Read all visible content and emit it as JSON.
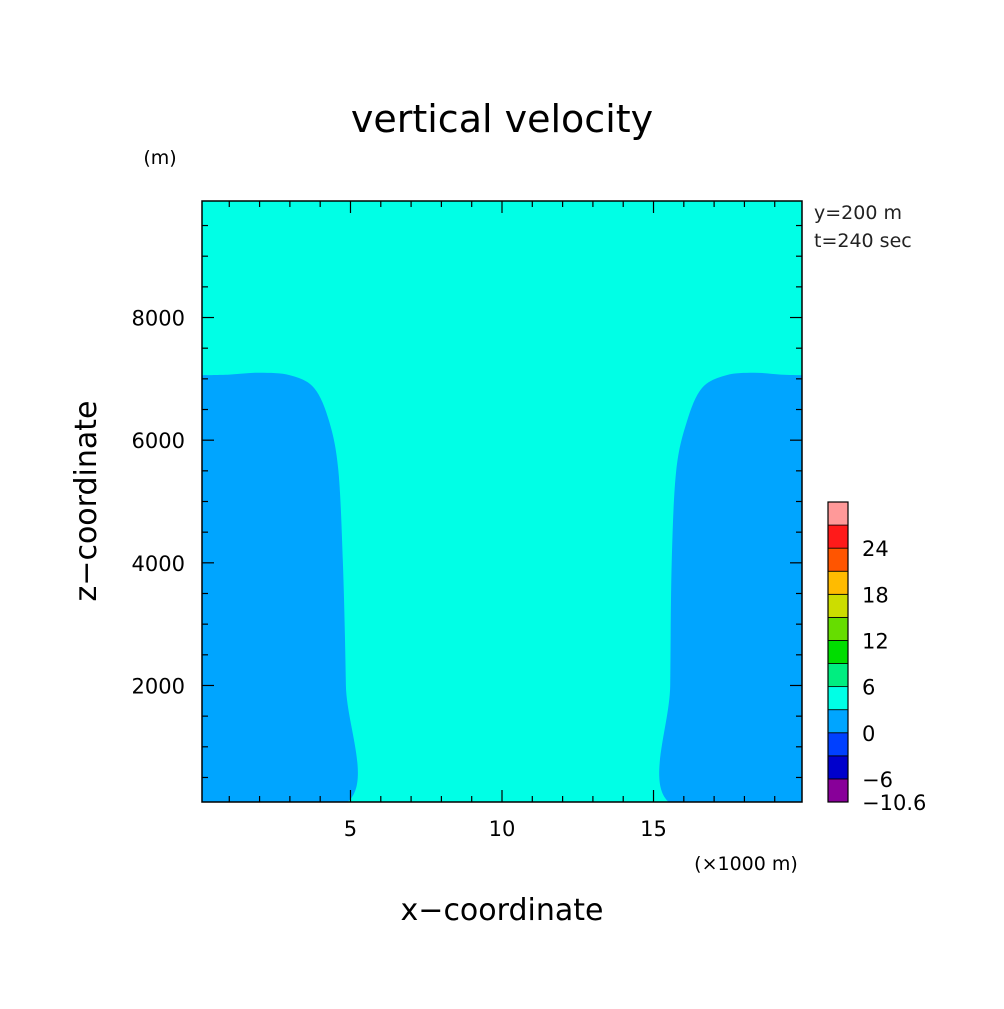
{
  "chart_data": {
    "type": "heatmap",
    "title": "vertical velocity",
    "xlabel": "x−coordinate",
    "ylabel": "z−coordinate",
    "x_unit": "(×1000 m)",
    "y_unit": "(m)",
    "annotations": [
      "y=200 m",
      "t=240 sec"
    ],
    "xlim": [
      0.1,
      19.9
    ],
    "ylim": [
      100,
      9900
    ],
    "x_ticks": [
      5,
      10,
      15
    ],
    "y_ticks": [
      2000,
      4000,
      6000,
      8000
    ],
    "x_tick_labels": [
      "5",
      "10",
      "15"
    ],
    "y_tick_labels": [
      "2000",
      "4000",
      "6000",
      "8000"
    ],
    "background_level": "0 to 3",
    "regions": [
      {
        "name": "left-downdraft",
        "level": "-3 to 0",
        "color": "#00a5ff",
        "boundary": [
          [
            0.1,
            100
          ],
          [
            4.9,
            100
          ],
          [
            4.85,
            2000
          ],
          [
            4.75,
            4000
          ],
          [
            4.6,
            5500
          ],
          [
            4.3,
            6300
          ],
          [
            3.8,
            6850
          ],
          [
            3.0,
            7060
          ],
          [
            2.0,
            7100
          ],
          [
            1.0,
            7070
          ],
          [
            0.1,
            7060
          ]
        ]
      },
      {
        "name": "right-downdraft",
        "level": "-3 to 0",
        "color": "#00a5ff",
        "boundary": [
          [
            19.9,
            100
          ],
          [
            15.5,
            100
          ],
          [
            15.55,
            2000
          ],
          [
            15.6,
            4000
          ],
          [
            15.75,
            5500
          ],
          [
            16.1,
            6300
          ],
          [
            16.6,
            6850
          ],
          [
            17.4,
            7060
          ],
          [
            18.3,
            7100
          ],
          [
            19.2,
            7070
          ],
          [
            19.9,
            7060
          ]
        ]
      }
    ],
    "colorbar": {
      "colors": [
        "#880099",
        "#0000cc",
        "#0040ff",
        "#00a5ff",
        "#00ffe6",
        "#00ee80",
        "#00dd00",
        "#66dd00",
        "#ccdd00",
        "#ffbb00",
        "#ff5500",
        "#ff1a1a",
        "#ff9999"
      ],
      "background_color": "#00ffe6",
      "tick_labels": [
        "24",
        "18",
        "12",
        "6",
        "0",
        "−6",
        "−10.6"
      ],
      "tick_values": [
        24,
        18,
        12,
        6,
        0,
        -6,
        -10.6
      ]
    }
  }
}
